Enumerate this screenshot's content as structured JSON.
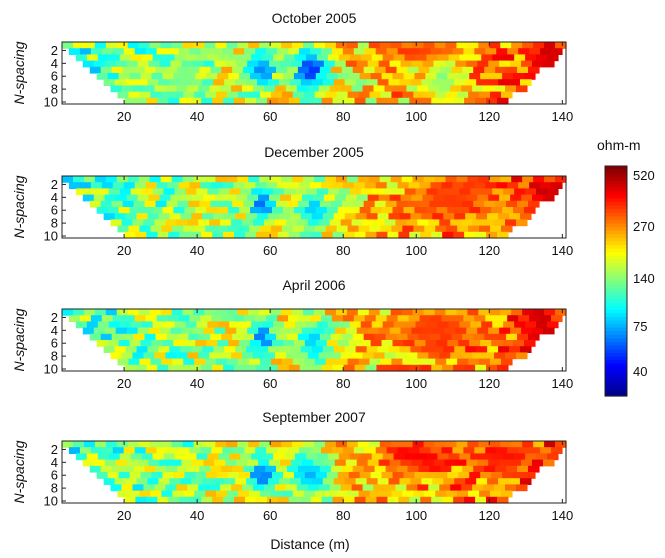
{
  "chart_data": [
    {
      "type": "heatmap",
      "title": "October 2005",
      "ylabel": "N-spacing",
      "xlim": [
        3,
        141
      ],
      "ylim": [
        1,
        10
      ],
      "x_ticks": [
        "20",
        "40",
        "60",
        "80",
        "100",
        "120",
        "140"
      ],
      "y_ticks": [
        "2",
        "4",
        "6",
        "8",
        "10"
      ],
      "features": [
        {
          "kind": "low",
          "x": 58,
          "y": 5,
          "rx": 4,
          "ry": 3,
          "level": 0.25
        },
        {
          "kind": "low",
          "x": 71,
          "y": 5,
          "rx": 5,
          "ry": 4,
          "level": 0.15
        },
        {
          "kind": "mid",
          "x": 36,
          "y": 6,
          "rx": 5,
          "ry": 4,
          "level": 0.5
        },
        {
          "kind": "mid",
          "x": 107,
          "y": 6,
          "rx": 6,
          "ry": 4,
          "level": 0.5
        },
        {
          "kind": "high",
          "x": 136,
          "y": 3,
          "rx": 6,
          "ry": 3,
          "level": 0.92
        },
        {
          "kind": "high",
          "x": 100,
          "y": 2,
          "rx": 12,
          "ry": 2,
          "level": 0.82
        }
      ]
    },
    {
      "type": "heatmap",
      "title": "December 2005",
      "ylabel": "N-spacing",
      "xlim": [
        3,
        141
      ],
      "ylim": [
        1,
        10
      ],
      "x_ticks": [
        "20",
        "40",
        "60",
        "80",
        "100",
        "120",
        "140"
      ],
      "y_ticks": [
        "2",
        "4",
        "6",
        "8",
        "10"
      ],
      "features": [
        {
          "kind": "low",
          "x": 58,
          "y": 5,
          "rx": 4,
          "ry": 3,
          "level": 0.22
        },
        {
          "kind": "low",
          "x": 72,
          "y": 6,
          "rx": 5,
          "ry": 4,
          "level": 0.32
        },
        {
          "kind": "high",
          "x": 135,
          "y": 3,
          "rx": 6,
          "ry": 3,
          "level": 0.93
        },
        {
          "kind": "high",
          "x": 110,
          "y": 4,
          "rx": 14,
          "ry": 4,
          "level": 0.82
        }
      ]
    },
    {
      "type": "heatmap",
      "title": "April 2006",
      "ylabel": "N-spacing",
      "xlim": [
        3,
        141
      ],
      "ylim": [
        1,
        10
      ],
      "x_ticks": [
        "20",
        "40",
        "60",
        "80",
        "100",
        "120",
        "140"
      ],
      "y_ticks": [
        "2",
        "4",
        "6",
        "8",
        "10"
      ],
      "features": [
        {
          "kind": "low",
          "x": 58,
          "y": 5,
          "rx": 4,
          "ry": 3,
          "level": 0.22
        },
        {
          "kind": "low",
          "x": 72,
          "y": 6,
          "rx": 5,
          "ry": 4,
          "level": 0.32
        },
        {
          "kind": "high",
          "x": 134,
          "y": 3,
          "rx": 5,
          "ry": 3,
          "level": 0.92
        },
        {
          "kind": "high",
          "x": 105,
          "y": 4,
          "rx": 14,
          "ry": 4,
          "level": 0.82
        }
      ]
    },
    {
      "type": "heatmap",
      "title": "September 2007",
      "ylabel": "N-spacing",
      "xlabel": "Distance (m)",
      "xlim": [
        3,
        141
      ],
      "ylim": [
        1,
        10
      ],
      "x_ticks": [
        "20",
        "40",
        "60",
        "80",
        "100",
        "120",
        "140"
      ],
      "y_ticks": [
        "2",
        "4",
        "6",
        "8",
        "10"
      ],
      "features": [
        {
          "kind": "low",
          "x": 58,
          "y": 6,
          "rx": 4,
          "ry": 3,
          "level": 0.22
        },
        {
          "kind": "low",
          "x": 71,
          "y": 6,
          "rx": 6,
          "ry": 4,
          "level": 0.3
        },
        {
          "kind": "high",
          "x": 100,
          "y": 3,
          "rx": 12,
          "ry": 3,
          "level": 0.88
        },
        {
          "kind": "high",
          "x": 125,
          "y": 3,
          "rx": 10,
          "ry": 3,
          "level": 0.86
        }
      ]
    }
  ],
  "colorbar": {
    "unit": "ohm-m",
    "ticks": [
      "520",
      "270",
      "140",
      "75",
      "40"
    ],
    "colormap": [
      "#00008f",
      "#0000ff",
      "#0080ff",
      "#00ffff",
      "#80ff80",
      "#ffff00",
      "#ff8000",
      "#ff0000",
      "#800000"
    ]
  }
}
